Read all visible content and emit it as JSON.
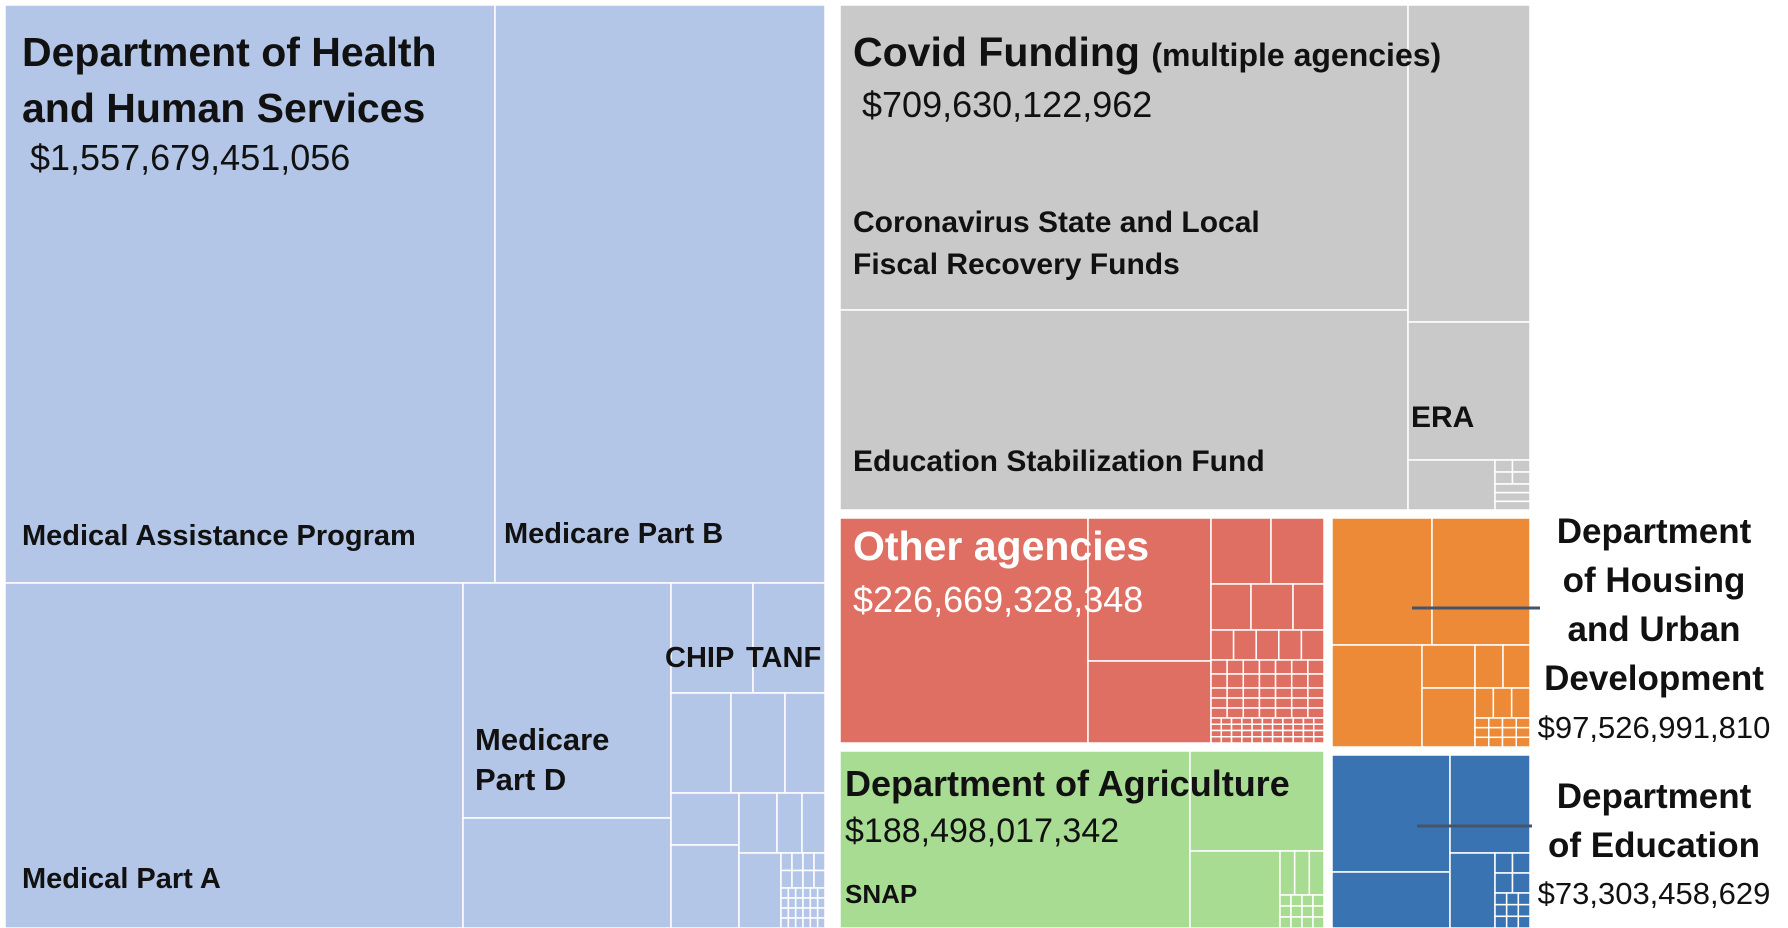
{
  "chart_data": {
    "type": "treemap",
    "title": "",
    "unit": "USD",
    "groups": [
      {
        "id": "hhs",
        "name": "Department of Health and Human Services",
        "name_lines": [
          "Department of Health",
          "and Human Services"
        ],
        "total": 1557679451056,
        "total_label": "$1,557,679,451,056",
        "color": "#b4c6e7",
        "items": [
          "Medical Assistance Program",
          "Medicare Part B",
          "Medical Part A",
          "Medicare Part D",
          "CHIP",
          "TANF"
        ],
        "item_lines": {
          "Medicare Part D": [
            "Medicare",
            "Part D"
          ]
        }
      },
      {
        "id": "covid",
        "name": "Covid Funding",
        "name_suffix": "(multiple agencies)",
        "total": 709630122962,
        "total_label": "$709,630,122,962",
        "color": "#c9c9c9",
        "items": [
          "Coronavirus State and Local Fiscal Recovery Funds",
          "Education Stabilization Fund",
          "ERA"
        ],
        "item_lines": {
          "Coronavirus State and Local Fiscal Recovery Funds": [
            "Coronavirus State and Local",
            "Fiscal Recovery Funds"
          ]
        }
      },
      {
        "id": "other",
        "name": "Other agencies",
        "total": 226669328348,
        "total_label": "$226,669,328,348",
        "color": "#e06f63",
        "items": []
      },
      {
        "id": "usda",
        "name": "Department of Agriculture",
        "total": 188498017342,
        "total_label": "$188,498,017,342",
        "color": "#a9dc93",
        "items": [
          "SNAP"
        ]
      },
      {
        "id": "hud",
        "name": "Department of Housing and Urban Development",
        "name_lines": [
          "Department",
          "of Housing",
          "and Urban",
          "Development"
        ],
        "total": 97526991810,
        "total_label": "$97,526,991,810",
        "color": "#ed8a37",
        "items": []
      },
      {
        "id": "ed",
        "name": "Department of Education",
        "name_lines": [
          "Department",
          "of Education"
        ],
        "total": 73303458629,
        "total_label": "$73,303,458,629",
        "color": "#3a73b1",
        "items": []
      }
    ]
  }
}
